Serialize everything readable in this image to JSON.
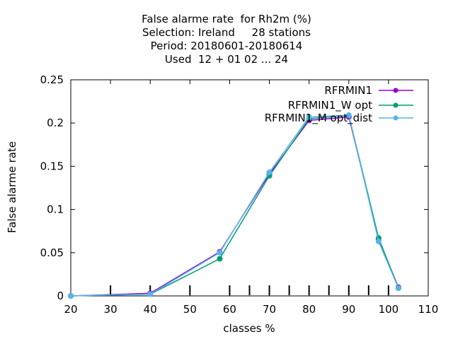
{
  "chart_data": {
    "type": "line",
    "title_lines": [
      "False alarme rate  for Rh2m (%)",
      "Selection: Ireland     28 stations",
      "Period: 20180601-20180614",
      "Used  12 + 01 02 ... 24"
    ],
    "xlabel": "classes %",
    "ylabel": "False alarme rate",
    "xlim": [
      20,
      110
    ],
    "ylim": [
      0,
      0.25
    ],
    "xticks": [
      "20",
      "30",
      "40",
      "50",
      "60",
      "70",
      "80",
      "90",
      "100",
      "110"
    ],
    "yticks": [
      "0",
      "0.05",
      "0.1",
      "0.15",
      "0.2",
      "0.25"
    ],
    "x": [
      20,
      40,
      57.5,
      70,
      80,
      90,
      97.5,
      102.5
    ],
    "series": [
      {
        "name": "RFRMIN1",
        "color": "#9400d3",
        "values": [
          0.0,
          0.003,
          0.051,
          0.141,
          0.203,
          0.207,
          0.066,
          0.01
        ]
      },
      {
        "name": "RFRMIN1_W opt",
        "color": "#009e73",
        "values": [
          0.0,
          0.002,
          0.043,
          0.139,
          0.205,
          0.209,
          0.067,
          0.009
        ]
      },
      {
        "name": "RFRMIN1_M opt_dist",
        "color": "#56b4e9",
        "values": [
          0.0,
          0.002,
          0.05,
          0.143,
          0.207,
          0.209,
          0.063,
          0.009
        ]
      }
    ],
    "bottom_ticks_x": [
      30,
      40,
      50,
      60,
      65,
      70,
      75,
      80,
      85,
      90,
      95,
      100
    ],
    "legend_position": "top-right",
    "grid": false
  }
}
